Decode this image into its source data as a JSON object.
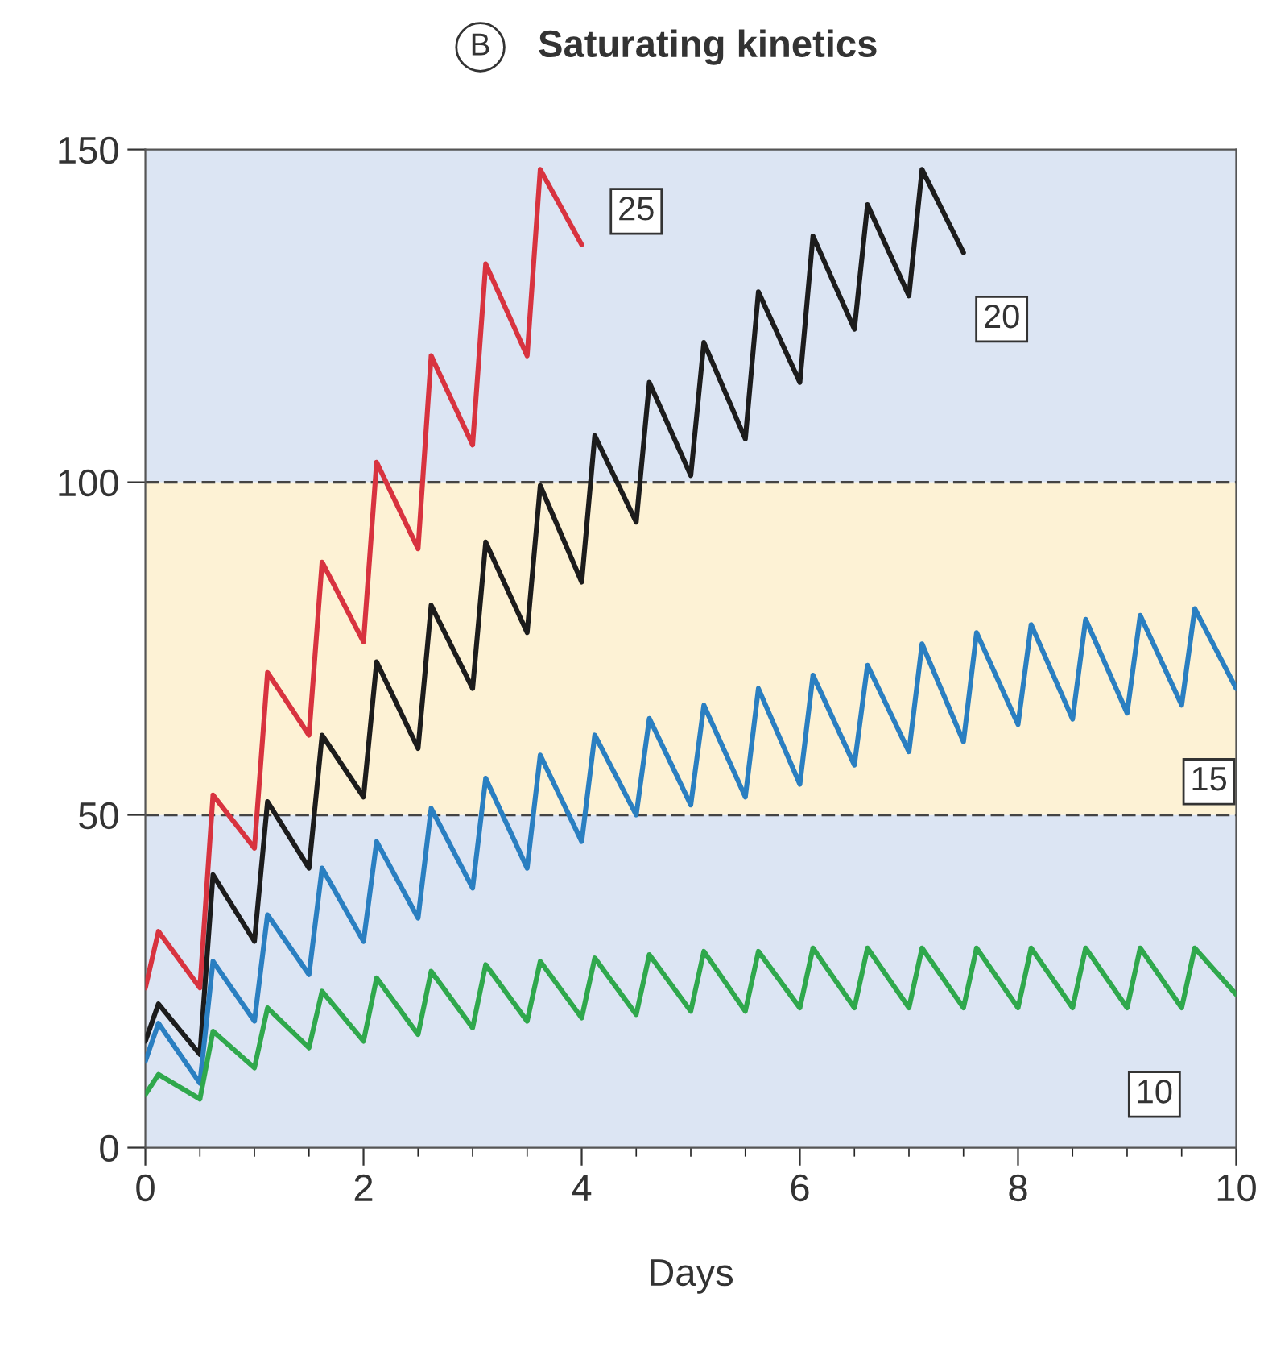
{
  "chart_data": {
    "type": "line",
    "title": "Saturating kinetics",
    "xlabel": "Days",
    "annotations": [
      "B"
    ],
    "xlim": [
      0,
      10
    ],
    "xticks": [
      0,
      2,
      4,
      6,
      8,
      10
    ],
    "ylim": [
      0,
      150
    ],
    "yticks": [
      0,
      50,
      100,
      150
    ],
    "grid": false,
    "legend": false,
    "marker": "none",
    "line_style": "solid",
    "bands": [
      {
        "axis": "y",
        "from": 0,
        "to": 50,
        "color": "#dce5f3"
      },
      {
        "axis": "y",
        "from": 50,
        "to": 100,
        "color": "#fdf2d5"
      },
      {
        "axis": "y",
        "from": 100,
        "to": 150,
        "color": "#dce5f3"
      }
    ],
    "ref_lines": [
      {
        "axis": "y",
        "value": 50,
        "color": "#444444",
        "line_style": "dashed"
      },
      {
        "axis": "y",
        "value": 100,
        "color": "#444444",
        "line_style": "dashed"
      }
    ],
    "series": [
      {
        "name": "25",
        "color": "#d8333f",
        "x": [
          0,
          0.12,
          0.5,
          0.62,
          1.0,
          1.12,
          1.5,
          1.62,
          2.0,
          2.12,
          2.5,
          2.62,
          3.0,
          3.12,
          3.5,
          3.62,
          4.0
        ],
        "values": [
          24,
          32.5,
          24,
          53,
          45,
          71.4,
          62,
          88,
          76,
          103,
          90,
          119,
          105.6,
          132.8,
          119,
          147,
          135.7
        ]
      },
      {
        "name": "20",
        "color": "#1c1c1c",
        "x": [
          0,
          0.12,
          0.5,
          0.62,
          1.0,
          1.12,
          1.5,
          1.62,
          2.0,
          2.12,
          2.5,
          2.62,
          3.0,
          3.12,
          3.5,
          3.62,
          4.0,
          4.12,
          4.5,
          4.62,
          5.0,
          5.12,
          5.5,
          5.62,
          6.0,
          6.12,
          6.5,
          6.62,
          7.0,
          7.12,
          7.5
        ],
        "values": [
          16,
          21.6,
          14,
          41,
          31,
          52,
          42,
          62,
          52.7,
          73,
          60,
          81.5,
          69,
          91,
          77.4,
          99.5,
          85,
          107,
          94,
          115,
          101,
          121,
          106.5,
          128.6,
          115,
          137,
          123,
          141.7,
          128,
          147,
          134.5
        ]
      },
      {
        "name": "15",
        "color": "#2a7fc1",
        "x": [
          0,
          0.12,
          0.5,
          0.62,
          1.0,
          1.12,
          1.5,
          1.62,
          2.0,
          2.12,
          2.5,
          2.62,
          3.0,
          3.12,
          3.5,
          3.62,
          4.0,
          4.12,
          4.5,
          4.62,
          5.0,
          5.12,
          5.5,
          5.62,
          6.0,
          6.12,
          6.5,
          6.62,
          7.0,
          7.12,
          7.5,
          7.62,
          8.0,
          8.12,
          8.5,
          8.62,
          9.0,
          9.12,
          9.5,
          9.62,
          10
        ],
        "values": [
          13,
          18.7,
          9.7,
          28,
          19,
          35,
          26,
          42,
          31,
          46,
          34.5,
          51,
          39,
          55.5,
          42,
          59,
          46,
          62,
          50,
          64.5,
          51.5,
          66.5,
          52.7,
          69,
          54.6,
          71,
          57.5,
          72.5,
          59.5,
          75.7,
          61,
          77.4,
          63.6,
          78.6,
          64.4,
          79.4,
          65.3,
          80,
          66.5,
          81,
          69
        ]
      },
      {
        "name": "10",
        "color": "#2fa84c",
        "x": [
          0,
          0.12,
          0.5,
          0.62,
          1.0,
          1.12,
          1.5,
          1.62,
          2.0,
          2.12,
          2.5,
          2.62,
          3.0,
          3.12,
          3.5,
          3.62,
          4.0,
          4.12,
          4.5,
          4.62,
          5.0,
          5.12,
          5.5,
          5.62,
          6.0,
          6.12,
          6.5,
          6.62,
          7.0,
          7.12,
          7.5,
          7.62,
          8.0,
          8.12,
          8.5,
          8.62,
          9.0,
          9.12,
          9.5,
          9.62,
          10
        ],
        "values": [
          8,
          11,
          7.3,
          17.5,
          12,
          21,
          15,
          23.5,
          16,
          25.5,
          17,
          26.5,
          18,
          27.5,
          19,
          28,
          19.5,
          28.5,
          20,
          29,
          20.5,
          29.5,
          20.5,
          29.5,
          21,
          30,
          21,
          30,
          21,
          30,
          21,
          30,
          21,
          30,
          21,
          30,
          21,
          30,
          21,
          30,
          23
        ]
      }
    ]
  }
}
